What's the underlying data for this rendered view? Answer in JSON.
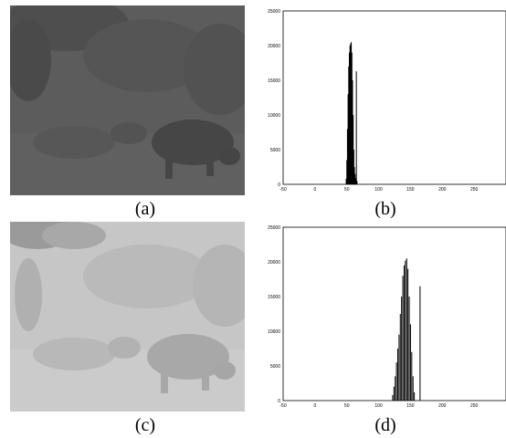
{
  "captions": {
    "a": "(a)",
    "b": "(b)",
    "c": "(c)",
    "d": "(d)"
  },
  "photos": [
    {
      "key": "a",
      "tone": "dark-low-contrast",
      "base_color": "#5a5a5a"
    },
    {
      "key": "c",
      "tone": "bright-low-contrast",
      "base_color": "#c4c4c4"
    }
  ],
  "chart_data": [
    {
      "type": "bar",
      "title": "",
      "xlabel": "",
      "ylabel": "",
      "xlim": [
        -50,
        300
      ],
      "ylim": [
        0,
        25000
      ],
      "x_ticks": [
        "-50",
        "0",
        "50",
        "100",
        "150",
        "200",
        "250"
      ],
      "y_ticks": [
        "0",
        "5000",
        "10000",
        "15000",
        "20000",
        "25000"
      ],
      "x": [
        49,
        50,
        51,
        52,
        53,
        54,
        55,
        56,
        57,
        58,
        59,
        60,
        61,
        62,
        63,
        64,
        65,
        66
      ],
      "values": [
        800,
        3500,
        8000,
        13000,
        17000,
        19000,
        20000,
        20300,
        20500,
        19000,
        15000,
        10000,
        5000,
        2500,
        1500,
        900,
        16300,
        500
      ],
      "bar_color": "#000000",
      "grid": false
    },
    {
      "type": "bar",
      "title": "",
      "xlabel": "",
      "ylabel": "",
      "xlim": [
        -50,
        300
      ],
      "ylim": [
        0,
        25000
      ],
      "x_ticks": [
        "-50",
        "0",
        "50",
        "100",
        "150",
        "200",
        "250"
      ],
      "y_ticks": [
        "0",
        "5000",
        "10000",
        "15000",
        "20000",
        "25000"
      ],
      "x": [
        122,
        124,
        126,
        128,
        130,
        132,
        134,
        136,
        138,
        140,
        142,
        144,
        146,
        148,
        150,
        152,
        154,
        156,
        165
      ],
      "values": [
        800,
        2000,
        3500,
        5500,
        7500,
        9500,
        12500,
        15000,
        18000,
        19500,
        20200,
        20500,
        19000,
        15000,
        11000,
        7000,
        3500,
        1200,
        16500
      ],
      "bar_color": "#000000",
      "grid": false
    }
  ]
}
